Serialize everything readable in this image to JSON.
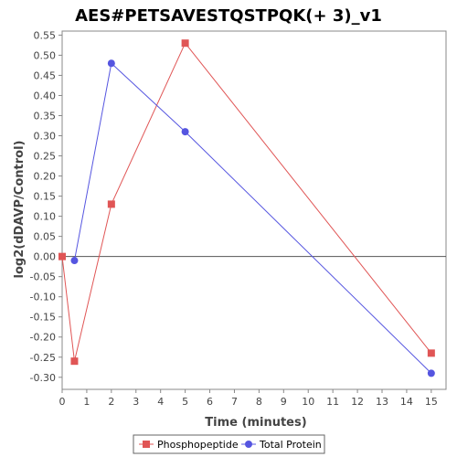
{
  "chart_data": {
    "type": "line",
    "title": "AES#PETSAVESTQSTPQK(+ 3)_v1",
    "xlabel": "Time (minutes)",
    "ylabel": "log2(dDAVP/Control)",
    "xlim": [
      0,
      15.6
    ],
    "ylim": [
      -0.33,
      0.56
    ],
    "x_ticks": [
      0,
      1,
      2,
      3,
      4,
      5,
      6,
      7,
      8,
      9,
      10,
      11,
      12,
      13,
      14,
      15
    ],
    "y_ticks": [
      -0.3,
      -0.25,
      -0.2,
      -0.15,
      -0.1,
      -0.05,
      0.0,
      0.05,
      0.1,
      0.15,
      0.2,
      0.25,
      0.3,
      0.35,
      0.4,
      0.45,
      0.5,
      0.55
    ],
    "y_tick_labels": [
      "-0.30",
      "-0.25",
      "-0.20",
      "-0.15",
      "-0.10",
      "-0.05",
      "0.00",
      "0.05",
      "0.10",
      "0.15",
      "0.20",
      "0.25",
      "0.30",
      "0.35",
      "0.40",
      "0.45",
      "0.50",
      "0.55"
    ],
    "zero_line": true,
    "grid": false,
    "legend_position": "bottom",
    "series": [
      {
        "name": "Phosphopeptide",
        "color": "#e05555",
        "marker": "square",
        "points": [
          {
            "x": 0,
            "y": 0.0
          },
          {
            "x": 0.5,
            "y": -0.26
          },
          {
            "x": 2,
            "y": 0.13
          },
          {
            "x": 5,
            "y": 0.53
          },
          {
            "x": 15,
            "y": -0.24
          }
        ]
      },
      {
        "name": "Total Protein",
        "color": "#5555e0",
        "marker": "circle",
        "points": [
          {
            "x": 0.5,
            "y": -0.01
          },
          {
            "x": 2,
            "y": 0.48
          },
          {
            "x": 5,
            "y": 0.31
          },
          {
            "x": 15,
            "y": -0.29
          }
        ]
      }
    ]
  }
}
